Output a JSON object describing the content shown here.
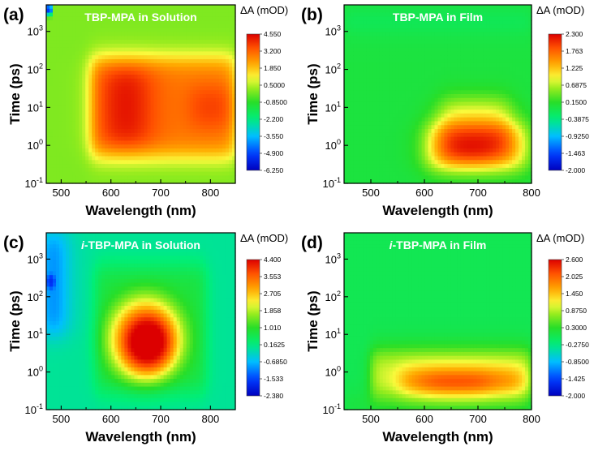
{
  "chart_data": [
    {
      "type": "heatmap",
      "panel_label": "(a)",
      "title": "TBP-MPA in Solution",
      "xlabel": "Wavelength (nm)",
      "ylabel": "Time  (ps)",
      "x_range": [
        470,
        850
      ],
      "x_ticks": [
        500,
        600,
        700,
        800
      ],
      "x_tick_labels": [
        "500",
        "600",
        "700",
        "800"
      ],
      "y_scale": "log",
      "y_range": [
        0.1,
        5000
      ],
      "y_ticks": [
        0.1,
        1,
        10,
        100,
        1000
      ],
      "y_tick_labels": [
        "10",
        "10",
        "10",
        "10",
        "10"
      ],
      "y_tick_exponents": [
        "-1",
        "0",
        "1",
        "2",
        "3"
      ],
      "colorbar_label": "ΔA (mOD)",
      "colorbar_range": [
        -6.25,
        4.55
      ],
      "colorbar_ticks": [
        "4.550",
        "3.200",
        "1.850",
        "0.5000",
        "-0.8500",
        "-2.200",
        "-3.550",
        "-4.900",
        "-6.250"
      ],
      "features": [
        {
          "shape": "band",
          "x": [
            560,
            850
          ],
          "logt": [
            -0.3,
            2.3
          ],
          "peak": 2.9,
          "fall_x": 1.4
        },
        {
          "shape": "band",
          "x": [
            590,
            670
          ],
          "logt": [
            -0.05,
            2.1
          ],
          "peak": 1.8,
          "fall_x": 3.5
        },
        {
          "shape": "band",
          "x": [
            760,
            850
          ],
          "logt": [
            0.5,
            1.5
          ],
          "peak": 0.9,
          "fall_x": 2.0
        },
        {
          "shape": "spot",
          "x": [
            470,
            482
          ],
          "logt": [
            3.4,
            3.75
          ],
          "peak": -5.5,
          "fall_x": 1.0
        }
      ]
    },
    {
      "type": "heatmap",
      "panel_label": "(b)",
      "title": "TBP-MPA in Film",
      "xlabel": "Wavelength (nm)",
      "ylabel": "Time  (ps)",
      "x_range": [
        450,
        800
      ],
      "x_ticks": [
        500,
        600,
        700,
        800
      ],
      "x_tick_labels": [
        "500",
        "600",
        "700",
        "800"
      ],
      "y_scale": "log",
      "y_range": [
        0.1,
        5000
      ],
      "y_ticks": [
        0.1,
        1,
        10,
        100,
        1000
      ],
      "y_tick_labels": [
        "10",
        "10",
        "10",
        "10",
        "10"
      ],
      "y_tick_exponents": [
        "-1",
        "0",
        "1",
        "2",
        "3"
      ],
      "colorbar_label": "ΔA (mOD)",
      "colorbar_range": [
        -2.0,
        2.3
      ],
      "colorbar_ticks": [
        "2.300",
        "1.763",
        "1.225",
        "0.6875",
        "0.1500",
        "-0.3875",
        "-0.9250",
        "-1.463",
        "-2.000"
      ],
      "features": [
        {
          "shape": "band",
          "x": [
            605,
            790
          ],
          "logt": [
            -0.6,
            0.55
          ],
          "peak": 1.4,
          "fall_x": 2.2
        },
        {
          "shape": "band",
          "x": [
            630,
            760
          ],
          "logt": [
            -0.3,
            1.2
          ],
          "peak": 0.9,
          "fall_x": 2.0
        },
        {
          "shape": "band",
          "x": [
            640,
            730
          ],
          "logt": [
            -0.45,
            -0.15
          ],
          "peak": 0.7,
          "fall_x": 3.0
        },
        {
          "shape": "band",
          "x": [
            450,
            800
          ],
          "logt": [
            3.15,
            3.35
          ],
          "peak": -0.35,
          "fall_x": 1.0
        }
      ]
    },
    {
      "type": "heatmap",
      "panel_label": "(c)",
      "title": "i-TBP-MPA in Solution",
      "title_italic_prefix": "i",
      "title_rest": "-TBP-MPA in Solution",
      "xlabel": "Wavelength (nm)",
      "ylabel": "Time  (ps)",
      "x_range": [
        470,
        850
      ],
      "x_ticks": [
        500,
        600,
        700,
        800
      ],
      "x_tick_labels": [
        "500",
        "600",
        "700",
        "800"
      ],
      "y_scale": "log",
      "y_range": [
        0.1,
        5000
      ],
      "y_ticks": [
        0.1,
        1,
        10,
        100,
        1000
      ],
      "y_tick_labels": [
        "10",
        "10",
        "10",
        "10",
        "10"
      ],
      "y_tick_exponents": [
        "-1",
        "0",
        "1",
        "2",
        "3"
      ],
      "colorbar_label": "ΔA (mOD)",
      "colorbar_range": [
        -2.38,
        4.4
      ],
      "colorbar_ticks": [
        "4.400",
        "3.553",
        "2.705",
        "1.858",
        "1.010",
        "0.1625",
        "-0.6850",
        "-1.533",
        "-2.380"
      ],
      "features": [
        {
          "shape": "band",
          "x": [
            570,
            790
          ],
          "logt": [
            -0.5,
            2.8
          ],
          "peak": 0.8,
          "fall_x": 1.2
        },
        {
          "shape": "blob",
          "x": [
            595,
            745
          ],
          "logt": [
            -0.25,
            2.0
          ],
          "peak": 2.8,
          "fall_x": 2.5
        },
        {
          "shape": "blob",
          "x": [
            625,
            725
          ],
          "logt": [
            0.0,
            1.5
          ],
          "peak": 1.2,
          "fall_x": 3.0
        },
        {
          "shape": "band",
          "x": [
            470,
            500
          ],
          "logt": [
            1.0,
            3.7
          ],
          "peak": -1.8,
          "fall_x": 2.5
        },
        {
          "shape": "spot",
          "x": [
            470,
            488
          ],
          "logt": [
            2.2,
            2.6
          ],
          "peak": -0.8,
          "fall_x": 1.0
        }
      ]
    },
    {
      "type": "heatmap",
      "panel_label": "(d)",
      "title": "i-TBP-MPA in Film",
      "title_italic_prefix": "i",
      "title_rest": "-TBP-MPA in Film",
      "xlabel": "Wavelength (nm)",
      "ylabel": "Time  (ps)",
      "x_range": [
        450,
        800
      ],
      "x_ticks": [
        500,
        600,
        700,
        800
      ],
      "x_tick_labels": [
        "500",
        "600",
        "700",
        "800"
      ],
      "y_scale": "log",
      "y_range": [
        0.1,
        5000
      ],
      "y_ticks": [
        0.1,
        1,
        10,
        100,
        1000
      ],
      "y_tick_labels": [
        "10",
        "10",
        "10",
        "10",
        "10"
      ],
      "y_tick_exponents": [
        "-1",
        "0",
        "1",
        "2",
        "3"
      ],
      "colorbar_label": "ΔA (mOD)",
      "colorbar_range": [
        -2.0,
        2.6
      ],
      "colorbar_ticks": [
        "2.600",
        "2.025",
        "1.450",
        "0.8750",
        "0.3000",
        "-0.2750",
        "-0.8500",
        "-1.425",
        "-2.000"
      ],
      "features": [
        {
          "shape": "band",
          "x": [
            500,
            800
          ],
          "logt": [
            -0.65,
            0.55
          ],
          "peak": 1.0,
          "fall_x": 1.0
        },
        {
          "shape": "band",
          "x": [
            555,
            785
          ],
          "logt": [
            -0.5,
            0.0
          ],
          "peak": 1.25,
          "fall_x": 2.0
        },
        {
          "shape": "band",
          "x": [
            600,
            720
          ],
          "logt": [
            -0.5,
            -0.15
          ],
          "peak": 0.8,
          "fall_x": 2.5
        },
        {
          "shape": "band",
          "x": [
            450,
            800
          ],
          "logt": [
            -0.95,
            -0.75
          ],
          "peak": 0.3,
          "fall_x": 1.0
        }
      ]
    }
  ]
}
